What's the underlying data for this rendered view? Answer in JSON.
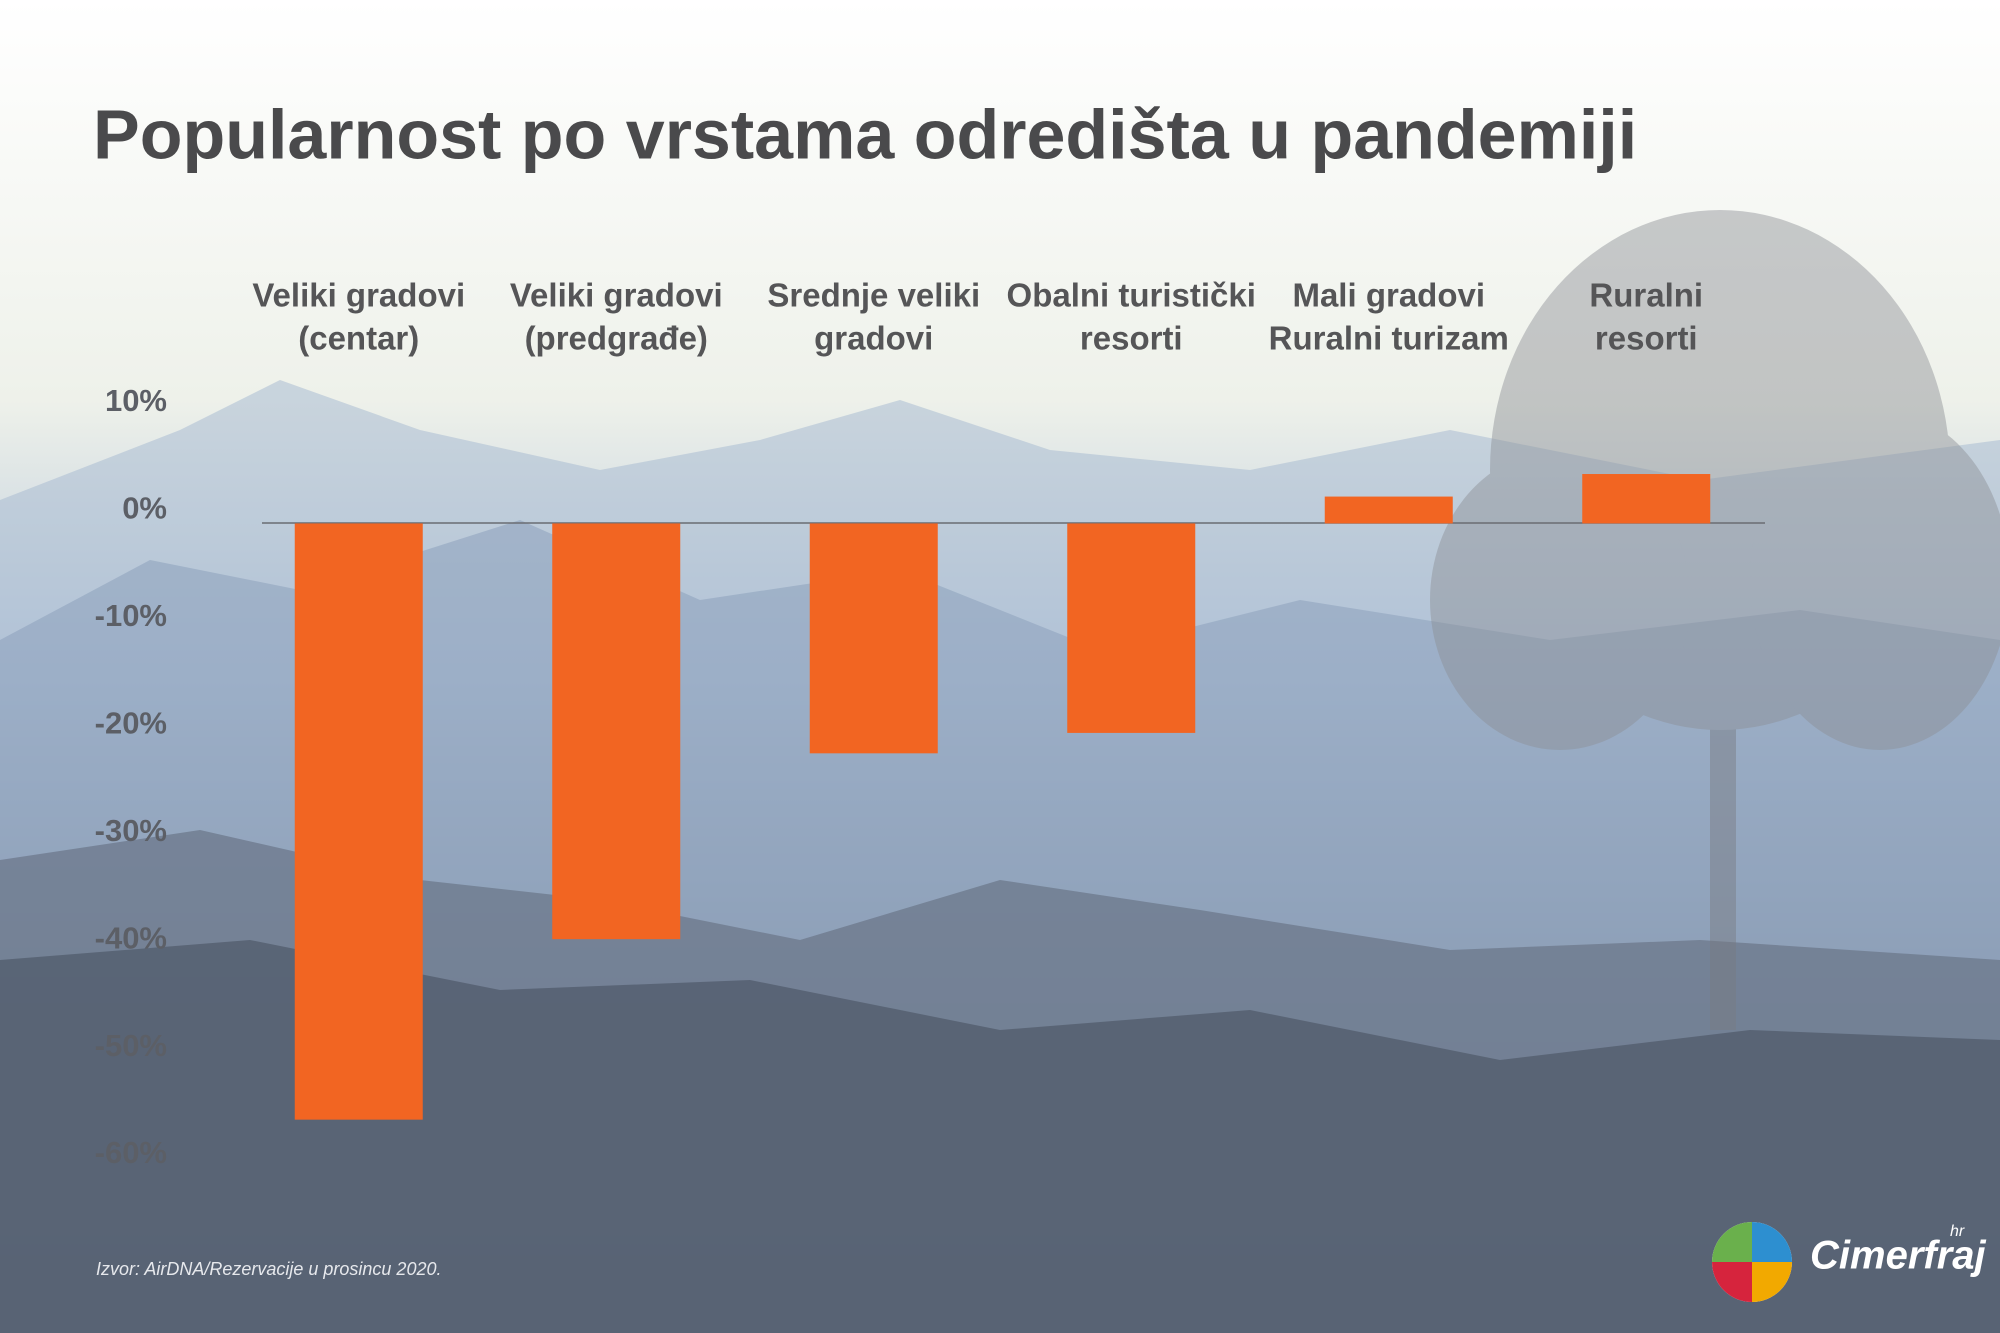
{
  "chart_data": {
    "type": "bar",
    "title": "Popularnost po vrstama odredišta u pandemiji",
    "categories": [
      [
        "Veliki gradovi",
        "(centar)"
      ],
      [
        "Veliki gradovi",
        "(predgrađe)"
      ],
      [
        "Srednje veliki",
        "gradovi"
      ],
      [
        "Obalni turistički",
        "resorti"
      ],
      [
        "Mali gradovi",
        "Ruralni turizam"
      ],
      [
        "Ruralni",
        "resorti"
      ]
    ],
    "values": [
      -55.5,
      -38.7,
      -21.4,
      -19.5,
      2.5,
      4.6
    ],
    "color": "#f26522",
    "ylim": [
      -60,
      10
    ],
    "yticks": [
      {
        "value": 10,
        "label": "10%"
      },
      {
        "value": 0,
        "label": "0%"
      },
      {
        "value": -10,
        "label": "-10%"
      },
      {
        "value": -20,
        "label": "-20%"
      },
      {
        "value": -30,
        "label": "-30%"
      },
      {
        "value": -40,
        "label": "-40%"
      },
      {
        "value": -50,
        "label": "-50%"
      },
      {
        "value": -60,
        "label": "-60%"
      }
    ],
    "grid": false,
    "source": "Izvor: AirDNA/Rezervacije u prosincu 2020."
  },
  "logo": {
    "name": "Cimerfraj",
    "suffix": "hr"
  }
}
